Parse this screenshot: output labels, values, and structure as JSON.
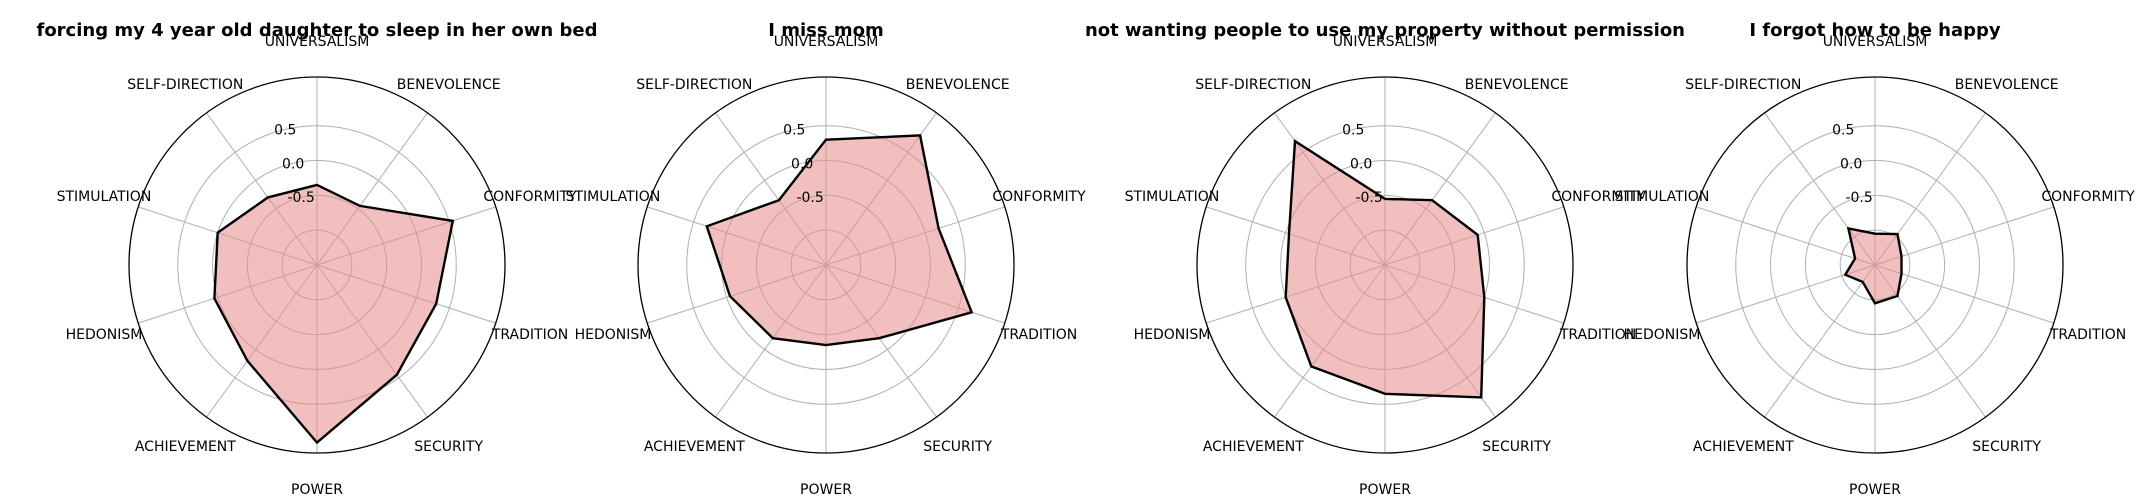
{
  "colors": {
    "fill": "#e88a8a",
    "fill_opacity": 0.55,
    "line": "#000000",
    "grid": "#b0b0b0"
  },
  "chart_data": [
    {
      "type": "radar",
      "title": "forcing my 4 year old daughter to sleep in her own bed",
      "categories": [
        "UNIVERSALISM",
        "BENEVOLENCE",
        "CONFORMITY",
        "TRADITION",
        "SECURITY",
        "POWER",
        "ACHIEVEMENT",
        "HEDONISM",
        "STIMULATION",
        "SELF-DIRECTION"
      ],
      "values": [
        -0.35,
        -0.45,
        0.55,
        0.3,
        0.45,
        1.05,
        0.2,
        0.05,
        0.0,
        -0.3
      ],
      "rlim": [
        -1.5,
        1.2
      ],
      "rticks": [
        "-0.5",
        "0.0",
        "0.5"
      ],
      "grid": true
    },
    {
      "type": "radar",
      "title": "I miss mom",
      "categories": [
        "UNIVERSALISM",
        "BENEVOLENCE",
        "CONFORMITY",
        "TRADITION",
        "SECURITY",
        "POWER",
        "ACHIEVEMENT",
        "HEDONISM",
        "STIMULATION",
        "SELF-DIRECTION"
      ],
      "values": [
        0.3,
        0.8,
        0.2,
        0.7,
        -0.2,
        -0.35,
        -0.2,
        -0.05,
        0.3,
        -0.35
      ],
      "rlim": [
        -1.5,
        1.2
      ],
      "rticks": [
        "-0.5",
        "0.0",
        "0.5"
      ],
      "grid": true
    },
    {
      "type": "radar",
      "title": "not wanting people to use my property without permission",
      "categories": [
        "UNIVERSALISM",
        "BENEVOLENCE",
        "CONFORMITY",
        "TRADITION",
        "SECURITY",
        "POWER",
        "ACHIEVEMENT",
        "HEDONISM",
        "STIMULATION",
        "SELF-DIRECTION"
      ],
      "values": [
        -0.55,
        -0.35,
        -0.1,
        0.0,
        0.85,
        0.35,
        0.3,
        0.0,
        -0.05,
        0.7
      ],
      "rlim": [
        -1.5,
        1.2
      ],
      "rticks": [
        "-0.5",
        "0.0",
        "0.5"
      ],
      "grid": true
    },
    {
      "type": "radar",
      "title": "I forgot how to be happy",
      "categories": [
        "UNIVERSALISM",
        "BENEVOLENCE",
        "CONFORMITY",
        "TRADITION",
        "SECURITY",
        "POWER",
        "ACHIEVEMENT",
        "HEDONISM",
        "STIMULATION",
        "SELF-DIRECTION"
      ],
      "values": [
        -1.05,
        -0.95,
        -1.1,
        -1.1,
        -0.95,
        -0.95,
        -1.2,
        -1.05,
        -1.2,
        -0.85
      ],
      "rlim": [
        -1.5,
        1.2
      ],
      "rticks": [
        "-0.5",
        "0.0",
        "0.5"
      ],
      "grid": true
    }
  ]
}
